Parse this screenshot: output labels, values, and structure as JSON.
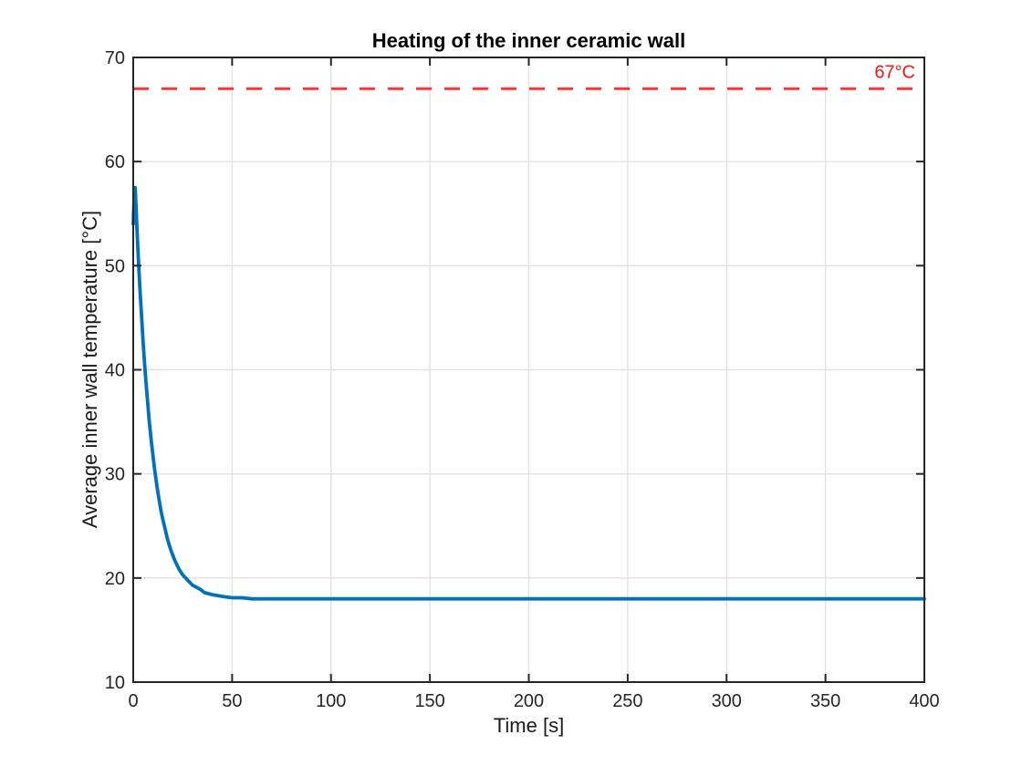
{
  "chart_data": {
    "type": "line",
    "title": "Heating of the inner ceramic wall",
    "xlabel": "Time [s]",
    "ylabel": "Average inner wall temperature [°C]",
    "xlim": [
      0,
      400
    ],
    "ylim": [
      10,
      70
    ],
    "xticks": [
      0,
      50,
      100,
      150,
      200,
      250,
      300,
      350,
      400
    ],
    "yticks": [
      10,
      20,
      30,
      40,
      50,
      60,
      70
    ],
    "grid": true,
    "legend": "none",
    "colors": {
      "background": "#ffffff",
      "grid": "#e2e2e2",
      "axis": "#262626",
      "title": "#000000"
    },
    "series": [
      {
        "name": "average-inner-wall-temperature",
        "color": "#0072bd",
        "line_width": 3.8,
        "style": "solid",
        "points": [
          [
            0,
            54.0
          ],
          [
            0.4,
            56.4
          ],
          [
            0.7,
            57.2
          ],
          [
            1,
            57.5
          ],
          [
            1.5,
            55.3
          ],
          [
            2,
            53.1
          ],
          [
            2.5,
            51.1
          ],
          [
            3,
            49.2
          ],
          [
            3.5,
            47.4
          ],
          [
            4,
            45.8
          ],
          [
            4.5,
            44.2
          ],
          [
            5,
            42.7
          ],
          [
            5.5,
            41.3
          ],
          [
            6,
            39.9
          ],
          [
            6.5,
            38.7
          ],
          [
            7,
            37.5
          ],
          [
            7.5,
            36.4
          ],
          [
            8,
            35.3
          ],
          [
            9,
            33.4
          ],
          [
            10,
            31.7
          ],
          [
            11,
            30.2
          ],
          [
            12,
            28.8
          ],
          [
            13,
            27.6
          ],
          [
            14,
            26.5
          ],
          [
            15,
            25.6
          ],
          [
            16,
            24.8
          ],
          [
            17,
            24.0
          ],
          [
            18,
            23.3
          ],
          [
            19,
            22.7
          ],
          [
            20,
            22.2
          ],
          [
            21,
            21.7
          ],
          [
            22,
            21.3
          ],
          [
            23,
            20.9
          ],
          [
            24,
            20.6
          ],
          [
            25,
            20.3
          ],
          [
            26,
            20.1
          ],
          [
            27,
            19.9
          ],
          [
            28,
            19.7
          ],
          [
            29,
            19.5
          ],
          [
            30,
            19.3
          ],
          [
            32,
            19.1
          ],
          [
            34,
            18.9
          ],
          [
            36,
            18.6
          ],
          [
            38,
            18.5
          ],
          [
            40,
            18.4
          ],
          [
            43,
            18.3
          ],
          [
            46,
            18.2
          ],
          [
            50,
            18.1
          ],
          [
            55,
            18.1
          ],
          [
            60,
            18.0
          ],
          [
            70,
            18.0
          ],
          [
            80,
            18.0
          ],
          [
            90,
            18.0
          ],
          [
            100,
            18.0
          ],
          [
            125,
            18.0
          ],
          [
            150,
            18.0
          ],
          [
            175,
            18.0
          ],
          [
            200,
            18.0
          ],
          [
            225,
            18.0
          ],
          [
            250,
            18.0
          ],
          [
            275,
            18.0
          ],
          [
            300,
            18.0
          ],
          [
            325,
            18.0
          ],
          [
            350,
            18.0
          ],
          [
            375,
            18.0
          ],
          [
            400,
            18.0
          ]
        ]
      }
    ],
    "annotations": [
      {
        "type": "hline",
        "y": 67,
        "label": "67°C",
        "color": "#ff3333",
        "label_color": "#ff1111",
        "style": "dashed",
        "line_width": 3,
        "dash": [
          17,
          14
        ],
        "label_position": "right-above"
      }
    ]
  }
}
